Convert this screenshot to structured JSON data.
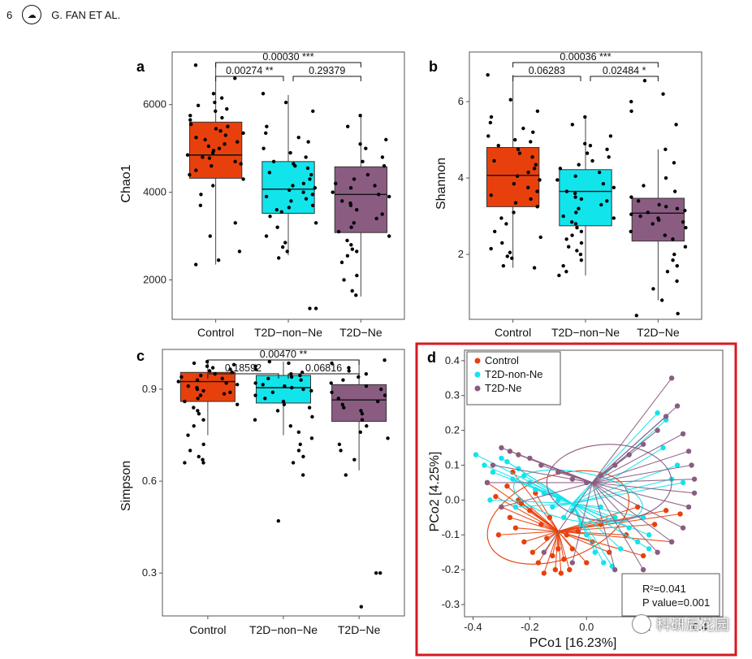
{
  "header": {
    "page_number": "6",
    "authors": "G. FAN ET AL.",
    "logo": "journal-logo-icon"
  },
  "colors": {
    "Control": "#E8400C",
    "T2D-non-Ne": "#12E4EC",
    "T2D-Ne": "#8A5C82",
    "highlight": "#D71920"
  },
  "panels": {
    "a": {
      "label": "a",
      "ylabel": "Chao1"
    },
    "b": {
      "label": "b",
      "ylabel": "Shannon"
    },
    "c": {
      "label": "c",
      "ylabel": "Simpson"
    },
    "d": {
      "label": "d",
      "xlabel": "PCo1 [16.23%]",
      "ylabel": "PCo2 [4.25%]"
    }
  },
  "watermark": {
    "text": "科研后花园"
  },
  "chart_data": [
    {
      "id": "a",
      "type": "box",
      "title": "",
      "xlabel": "",
      "ylabel": "Chao1",
      "categories": [
        "Control",
        "T2D−non−Ne",
        "T2D−Ne"
      ],
      "ylim": [
        1100,
        7200
      ],
      "yticks": [
        2000,
        4000,
        6000
      ],
      "yticklabels": [
        "2000",
        "4000",
        "6000"
      ],
      "boxes": [
        {
          "q1": 4320,
          "median": 4850,
          "q3": 5600,
          "whislo": 2350,
          "whishi": 6950
        },
        {
          "q1": 3520,
          "median": 4070,
          "q3": 4700,
          "whislo": 2560,
          "whishi": 6220
        },
        {
          "q1": 3080,
          "median": 3950,
          "q3": 4580,
          "whislo": 1620,
          "whishi": 5780
        }
      ],
      "points": [
        [
          6900,
          6600,
          6250,
          6150,
          6050,
          5980,
          5900,
          5850,
          5750,
          5700,
          5650,
          5550,
          5500,
          5450,
          5400,
          5350,
          5300,
          5250,
          5200,
          5150,
          5100,
          5050,
          5000,
          4950,
          4900,
          4850,
          4800,
          4780,
          4700,
          4650,
          4600,
          4500,
          4400,
          4300,
          4150,
          3950,
          3700,
          3300,
          3000,
          2650,
          2450,
          2350
        ],
        [
          6250,
          6050,
          5850,
          5500,
          5350,
          5250,
          5150,
          5000,
          4900,
          4800,
          4700,
          4650,
          4600,
          4550,
          4450,
          4400,
          4300,
          4200,
          4150,
          4100,
          4050,
          4000,
          3950,
          3900,
          3850,
          3800,
          3700,
          3650,
          3600,
          3550,
          3450,
          3300,
          3200,
          3000,
          2850,
          2750,
          2650,
          2500,
          1350,
          1350
        ],
        [
          5750,
          5500,
          5200,
          5100,
          5000,
          4800,
          4700,
          4600,
          4400,
          4300,
          4200,
          4150,
          4100,
          4000,
          3950,
          3900,
          3800,
          3750,
          3700,
          3600,
          3500,
          3400,
          3300,
          3200,
          3100,
          3000,
          2900,
          2800,
          2700,
          2650,
          2550,
          2400,
          2100,
          2000,
          1750,
          1650
        ]
      ],
      "comparisons": [
        {
          "groups": [
            0,
            2
          ],
          "label": "0.00030 ***"
        },
        {
          "groups": [
            0,
            1
          ],
          "label": "0.00274 **"
        },
        {
          "groups": [
            1,
            2
          ],
          "label": "0.29379"
        }
      ]
    },
    {
      "id": "b",
      "type": "box",
      "title": "",
      "xlabel": "",
      "ylabel": "Shannon",
      "categories": [
        "Control",
        "T2D−non−Ne",
        "T2D−Ne"
      ],
      "ylim": [
        0.3,
        7.3
      ],
      "yticks": [
        2,
        4,
        6
      ],
      "yticklabels": [
        "2",
        "4",
        "6"
      ],
      "boxes": [
        {
          "q1": 3.25,
          "median": 4.07,
          "q3": 4.8,
          "whislo": 1.65,
          "whishi": 6.7
        },
        {
          "q1": 2.75,
          "median": 3.65,
          "q3": 4.22,
          "whislo": 1.45,
          "whishi": 5.6
        },
        {
          "q1": 2.35,
          "median": 3.08,
          "q3": 3.47,
          "whislo": 0.8,
          "whishi": 4.75
        }
      ],
      "points": [
        [
          6.7,
          6.05,
          5.75,
          5.6,
          5.45,
          5.3,
          5.2,
          5.1,
          5.0,
          4.95,
          4.85,
          4.75,
          4.65,
          4.55,
          4.45,
          4.35,
          4.25,
          4.15,
          4.05,
          3.95,
          3.85,
          3.75,
          3.65,
          3.55,
          3.45,
          3.35,
          3.25,
          3.1,
          2.95,
          2.8,
          2.6,
          2.45,
          2.3,
          2.15,
          2.05,
          1.95,
          1.9,
          1.7,
          1.65
        ],
        [
          5.6,
          5.4,
          5.1,
          4.9,
          4.85,
          4.75,
          4.65,
          4.55,
          4.45,
          4.35,
          4.25,
          4.15,
          4.05,
          3.95,
          3.85,
          3.75,
          3.65,
          3.6,
          3.5,
          3.45,
          3.4,
          3.3,
          3.2,
          3.1,
          3.0,
          2.95,
          2.85,
          2.8,
          2.7,
          2.6,
          2.5,
          2.4,
          2.3,
          2.2,
          2.1,
          2.0,
          1.85,
          1.7,
          1.55,
          1.45
        ],
        [
          6.55,
          6.2,
          6.0,
          5.75,
          5.4,
          4.75,
          4.4,
          4.0,
          3.8,
          3.65,
          3.5,
          3.4,
          3.3,
          3.25,
          3.2,
          3.15,
          3.1,
          3.05,
          3.0,
          2.95,
          2.9,
          2.85,
          2.8,
          2.7,
          2.6,
          2.5,
          2.4,
          2.2,
          2.0,
          1.85,
          1.7,
          1.55,
          1.3,
          1.1,
          0.8,
          0.45,
          0.4
        ]
      ],
      "comparisons": [
        {
          "groups": [
            0,
            2
          ],
          "label": "0.00036 ***"
        },
        {
          "groups": [
            0,
            1
          ],
          "label": "0.06283"
        },
        {
          "groups": [
            1,
            2
          ],
          "label": "0.02484 *"
        }
      ]
    },
    {
      "id": "c",
      "type": "box",
      "title": "",
      "xlabel": "",
      "ylabel": "Simpson",
      "categories": [
        "Control",
        "T2D−non−Ne",
        "T2D−Ne"
      ],
      "ylim": [
        0.16,
        1.03
      ],
      "yticks": [
        0.3,
        0.6,
        0.9
      ],
      "yticklabels": [
        "0.3",
        "0.6",
        "0.9"
      ],
      "boxes": [
        {
          "q1": 0.86,
          "median": 0.925,
          "q3": 0.955,
          "whislo": 0.75,
          "whishi": 0.99
        },
        {
          "q1": 0.855,
          "median": 0.905,
          "q3": 0.945,
          "whislo": 0.75,
          "whishi": 0.99
        },
        {
          "q1": 0.795,
          "median": 0.865,
          "q3": 0.915,
          "whislo": 0.635,
          "whishi": 0.995
        }
      ],
      "points": [
        [
          0.99,
          0.985,
          0.98,
          0.975,
          0.97,
          0.965,
          0.96,
          0.955,
          0.95,
          0.945,
          0.94,
          0.935,
          0.93,
          0.925,
          0.92,
          0.915,
          0.91,
          0.905,
          0.9,
          0.895,
          0.89,
          0.885,
          0.88,
          0.87,
          0.86,
          0.85,
          0.84,
          0.83,
          0.82,
          0.8,
          0.78,
          0.75,
          0.72,
          0.7,
          0.68,
          0.67,
          0.66,
          0.66
        ],
        [
          0.99,
          0.985,
          0.975,
          0.965,
          0.955,
          0.95,
          0.945,
          0.94,
          0.935,
          0.93,
          0.92,
          0.915,
          0.91,
          0.905,
          0.9,
          0.895,
          0.89,
          0.88,
          0.87,
          0.86,
          0.85,
          0.84,
          0.83,
          0.81,
          0.8,
          0.78,
          0.76,
          0.74,
          0.72,
          0.7,
          0.68,
          0.66,
          0.62,
          0.47
        ],
        [
          0.995,
          0.985,
          0.97,
          0.96,
          0.95,
          0.94,
          0.93,
          0.92,
          0.91,
          0.9,
          0.89,
          0.88,
          0.87,
          0.86,
          0.85,
          0.84,
          0.83,
          0.82,
          0.8,
          0.78,
          0.76,
          0.74,
          0.72,
          0.7,
          0.67,
          0.62,
          0.3,
          0.3,
          0.19
        ]
      ],
      "comparisons": [
        {
          "groups": [
            0,
            2
          ],
          "label": "0.00470 **"
        },
        {
          "groups": [
            0,
            1
          ],
          "label": "0.18592"
        },
        {
          "groups": [
            1,
            2
          ],
          "label": "0.06816"
        }
      ]
    },
    {
      "id": "d",
      "type": "scatter",
      "title": "",
      "xlabel": "PCo1 [16.23%]",
      "ylabel": "PCo2 [4.25%]",
      "xlim": [
        -0.43,
        0.48
      ],
      "ylim": [
        -0.335,
        0.43
      ],
      "xticks": [
        -0.4,
        -0.2,
        0.0,
        0.2,
        0.4
      ],
      "xticklabels": [
        "-0.4",
        "-0.2",
        "0.0",
        "0.2",
        "0.4"
      ],
      "yticks": [
        -0.3,
        -0.2,
        -0.1,
        0.0,
        0.1,
        0.2,
        0.3,
        0.4
      ],
      "yticklabels": [
        "-0.3",
        "-0.2",
        "-0.1",
        "0.0",
        "0.1",
        "0.2",
        "0.3",
        "0.4"
      ],
      "legend": [
        "Control",
        "T2D-non-Ne",
        "T2D-Ne"
      ],
      "legend_position": "top-left",
      "annotation": {
        "r2": "R²=0.041",
        "p": "P value=0.001"
      },
      "groups": [
        {
          "name": "Control",
          "centroid": [
            -0.1,
            -0.09
          ],
          "ellipse": {
            "cx": -0.1,
            "cy": -0.05,
            "rx": 0.26,
            "ry": 0.12,
            "angle": 20
          },
          "points": [
            [
              -0.35,
              0.05
            ],
            [
              -0.32,
              0.01
            ],
            [
              -0.3,
              -0.02
            ],
            [
              -0.28,
              0.04
            ],
            [
              -0.27,
              -0.05
            ],
            [
              -0.25,
              -0.08
            ],
            [
              -0.24,
              0.0
            ],
            [
              -0.22,
              -0.12
            ],
            [
              -0.2,
              -0.03
            ],
            [
              -0.19,
              -0.15
            ],
            [
              -0.18,
              0.02
            ],
            [
              -0.17,
              -0.18
            ],
            [
              -0.16,
              -0.07
            ],
            [
              -0.15,
              -0.21
            ],
            [
              -0.14,
              -0.11
            ],
            [
              -0.13,
              -0.05
            ],
            [
              -0.12,
              -0.16
            ],
            [
              -0.11,
              -0.2
            ],
            [
              -0.1,
              -0.14
            ],
            [
              -0.09,
              -0.21
            ],
            [
              -0.08,
              -0.17
            ],
            [
              -0.07,
              -0.1
            ],
            [
              -0.06,
              -0.2
            ],
            [
              -0.05,
              -0.14
            ],
            [
              -0.03,
              -0.09
            ],
            [
              0.0,
              -0.18
            ],
            [
              0.02,
              -0.12
            ],
            [
              0.05,
              -0.07
            ],
            [
              0.08,
              -0.15
            ],
            [
              0.1,
              -0.05
            ],
            [
              0.14,
              -0.1
            ],
            [
              0.18,
              -0.02
            ],
            [
              0.2,
              -0.16
            ],
            [
              0.24,
              -0.07
            ],
            [
              0.28,
              -0.03
            ],
            [
              0.3,
              -0.12
            ],
            [
              0.33,
              -0.04
            ],
            [
              -0.31,
              -0.1
            ],
            [
              -0.26,
              0.08
            ],
            [
              -0.23,
              -0.01
            ]
          ]
        },
        {
          "name": "T2D-non-Ne",
          "centroid": [
            -0.05,
            -0.01
          ],
          "ellipse": {
            "cx": -0.03,
            "cy": 0.01,
            "rx": 0.23,
            "ry": 0.07,
            "angle": -10
          },
          "points": [
            [
              -0.39,
              0.13
            ],
            [
              -0.36,
              0.1
            ],
            [
              -0.33,
              0.08
            ],
            [
              -0.3,
              0.12
            ],
            [
              -0.28,
              0.11
            ],
            [
              -0.26,
              0.06
            ],
            [
              -0.24,
              0.09
            ],
            [
              -0.22,
              0.07
            ],
            [
              -0.2,
              0.05
            ],
            [
              -0.18,
              0.03
            ],
            [
              -0.15,
              0.02
            ],
            [
              -0.12,
              -0.02
            ],
            [
              -0.1,
              0.0
            ],
            [
              -0.08,
              -0.05
            ],
            [
              -0.05,
              -0.03
            ],
            [
              -0.02,
              -0.07
            ],
            [
              0.0,
              -0.1
            ],
            [
              0.03,
              -0.15
            ],
            [
              0.06,
              -0.18
            ],
            [
              0.09,
              -0.19
            ],
            [
              0.12,
              -0.14
            ],
            [
              0.15,
              -0.08
            ],
            [
              0.18,
              -0.12
            ],
            [
              0.2,
              -0.05
            ],
            [
              0.22,
              -0.1
            ],
            [
              0.25,
              0.25
            ],
            [
              0.27,
              0.15
            ],
            [
              0.28,
              0.23
            ],
            [
              0.3,
              0.06
            ],
            [
              0.32,
              0.1
            ],
            [
              0.34,
              0.05
            ],
            [
              0.22,
              -0.14
            ],
            [
              -0.34,
              0.0
            ],
            [
              -0.25,
              -0.02
            ],
            [
              0.1,
              -0.05
            ],
            [
              0.05,
              -0.02
            ]
          ]
        },
        {
          "name": "T2D-Ne",
          "centroid": [
            0.02,
            0.05
          ],
          "ellipse": {
            "cx": 0.08,
            "cy": 0.05,
            "rx": 0.22,
            "ry": 0.11,
            "angle": 0
          },
          "points": [
            [
              -0.33,
              0.1
            ],
            [
              -0.3,
              0.15
            ],
            [
              -0.27,
              0.14
            ],
            [
              -0.24,
              0.13
            ],
            [
              -0.2,
              0.12
            ],
            [
              -0.16,
              0.1
            ],
            [
              -0.1,
              0.08
            ],
            [
              -0.05,
              0.06
            ],
            [
              0.0,
              0.05
            ],
            [
              0.05,
              0.07
            ],
            [
              0.1,
              0.1
            ],
            [
              0.15,
              0.13
            ],
            [
              0.2,
              0.16
            ],
            [
              0.25,
              0.2
            ],
            [
              0.28,
              0.24
            ],
            [
              0.3,
              0.35
            ],
            [
              0.32,
              0.27
            ],
            [
              0.34,
              0.19
            ],
            [
              0.36,
              0.14
            ],
            [
              0.37,
              0.1
            ],
            [
              0.38,
              0.06
            ],
            [
              0.38,
              0.02
            ],
            [
              0.36,
              -0.02
            ],
            [
              0.34,
              -0.08
            ],
            [
              0.3,
              -0.12
            ],
            [
              0.25,
              -0.15
            ],
            [
              0.2,
              -0.2
            ],
            [
              0.1,
              -0.2
            ],
            [
              -0.05,
              -0.18
            ],
            [
              -0.15,
              -0.15
            ],
            [
              -0.3,
              -0.02
            ],
            [
              -0.35,
              0.05
            ]
          ]
        }
      ]
    }
  ]
}
